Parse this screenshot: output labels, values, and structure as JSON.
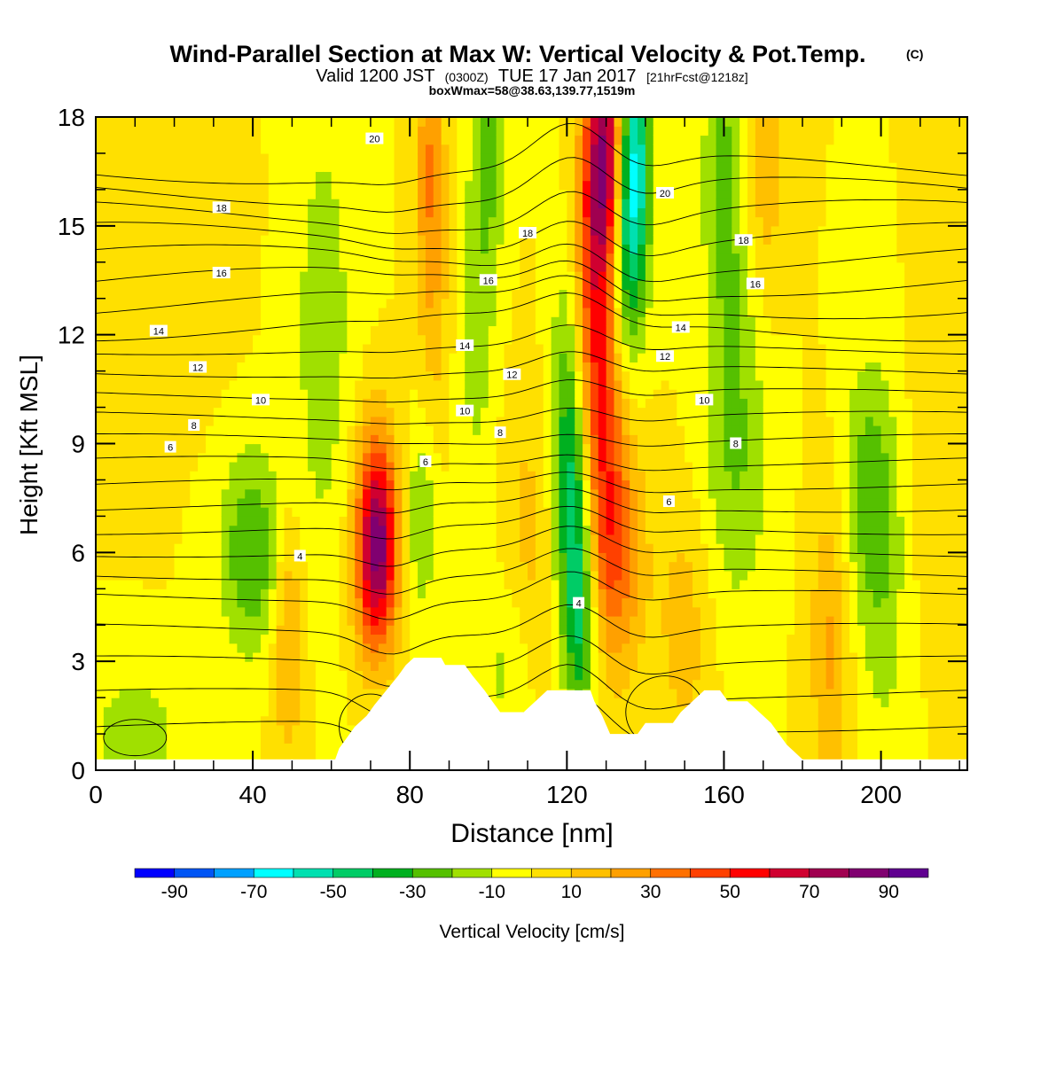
{
  "chart_data": {
    "type": "heatmap",
    "title": "Wind-Parallel Section at Max W: Vertical Velocity & Pot.Temp.",
    "title_mark": "(C)",
    "subtitle": {
      "part1": "Valid 1200 JST",
      "part2": "(0300Z)",
      "part3": "TUE 17 Jan 2017",
      "part4": "[21hrFcst@1218z]"
    },
    "info": "boxWmax=58@38.63,139.77,1519m",
    "xlabel": "Distance [nm]",
    "ylabel": "Height [Kft MSL]",
    "xlim": [
      0,
      222
    ],
    "ylim": [
      0,
      18
    ],
    "xticks": [
      "0",
      "40",
      "80",
      "120",
      "160",
      "200"
    ],
    "xtick_values": [
      0,
      40,
      80,
      120,
      160,
      200
    ],
    "yticks": [
      "0",
      "3",
      "6",
      "9",
      "12",
      "15",
      "18"
    ],
    "ytick_values": [
      0,
      3,
      6,
      9,
      12,
      15,
      18
    ],
    "colorbar": {
      "label": "Vertical Velocity [cm/s]",
      "range": [
        -100,
        100
      ],
      "step": 10,
      "tick_labels": [
        "-90",
        "-70",
        "-50",
        "-30",
        "-10",
        "10",
        "30",
        "50",
        "70",
        "90"
      ],
      "tick_values": [
        -90,
        -70,
        -50,
        -30,
        -10,
        10,
        30,
        50,
        70,
        90
      ],
      "colors": [
        "#0000ff",
        "#0055f5",
        "#00a0ff",
        "#00ffff",
        "#00e0b0",
        "#00cc66",
        "#00b020",
        "#55c000",
        "#a0e000",
        "#ffff00",
        "#ffe000",
        "#ffc000",
        "#ffa000",
        "#ff7000",
        "#ff4000",
        "#ff0000",
        "#d00030",
        "#a00050",
        "#800070",
        "#600090"
      ]
    },
    "series": [
      {
        "name": "Vertical Velocity",
        "units": "cm/s",
        "features": [
          {
            "x": 130,
            "y": 17.0,
            "value": 65,
            "sx": 3.5,
            "sy": 2.0
          },
          {
            "x": 128,
            "y": 14.5,
            "value": 35,
            "sx": 4.0,
            "sy": 3.0
          },
          {
            "x": 126,
            "y": 11.0,
            "value": 30,
            "sx": 4.5,
            "sy": 3.5
          },
          {
            "x": 130,
            "y": 8.0,
            "value": 30,
            "sx": 5.0,
            "sy": 3.0
          },
          {
            "x": 133,
            "y": 5.5,
            "value": 22,
            "sx": 5.0,
            "sy": 2.2
          },
          {
            "x": 137,
            "y": 17.0,
            "value": -55,
            "sx": 3.0,
            "sy": 2.2
          },
          {
            "x": 135,
            "y": 14.0,
            "value": -40,
            "sx": 3.5,
            "sy": 2.5
          },
          {
            "x": 121,
            "y": 9.5,
            "value": -42,
            "sx": 3.5,
            "sy": 3.5
          },
          {
            "x": 123,
            "y": 6.5,
            "value": -35,
            "sx": 3.2,
            "sy": 2.5
          },
          {
            "x": 124,
            "y": 3.5,
            "value": -25,
            "sx": 3.0,
            "sy": 1.5
          },
          {
            "x": 72,
            "y": 6.2,
            "value": 55,
            "sx": 3.5,
            "sy": 1.6
          },
          {
            "x": 71,
            "y": 7.8,
            "value": 30,
            "sx": 4.0,
            "sy": 1.8
          },
          {
            "x": 71,
            "y": 4.5,
            "value": 25,
            "sx": 4.0,
            "sy": 1.5
          },
          {
            "x": 49,
            "y": 4.0,
            "value": 25,
            "sx": 3.0,
            "sy": 2.5
          },
          {
            "x": 40,
            "y": 6.0,
            "value": -30,
            "sx": 6.0,
            "sy": 2.0
          },
          {
            "x": 85,
            "y": 17.0,
            "value": 25,
            "sx": 2.5,
            "sy": 2.5
          },
          {
            "x": 86,
            "y": 13.0,
            "value": 15,
            "sx": 3.0,
            "sy": 3.0
          },
          {
            "x": 100,
            "y": 17.5,
            "value": -25,
            "sx": 3.0,
            "sy": 2.5
          },
          {
            "x": 97,
            "y": 12.0,
            "value": -15,
            "sx": 3.5,
            "sy": 3.0
          },
          {
            "x": 83,
            "y": 7.0,
            "value": -20,
            "sx": 3.0,
            "sy": 2.0
          },
          {
            "x": 110,
            "y": 6.0,
            "value": 15,
            "sx": 5.0,
            "sy": 3.0
          },
          {
            "x": 163,
            "y": 8.5,
            "value": -20,
            "sx": 6.0,
            "sy": 3.0
          },
          {
            "x": 160,
            "y": 17.0,
            "value": -20,
            "sx": 4.0,
            "sy": 2.5
          },
          {
            "x": 162,
            "y": 13.5,
            "value": -12,
            "sx": 4.5,
            "sy": 2.5
          },
          {
            "x": 170,
            "y": 16.5,
            "value": 18,
            "sx": 4.0,
            "sy": 2.5
          },
          {
            "x": 197,
            "y": 7.8,
            "value": -25,
            "sx": 5.0,
            "sy": 2.5
          },
          {
            "x": 187,
            "y": 3.5,
            "value": 22,
            "sx": 3.5,
            "sy": 3.0
          },
          {
            "x": 201,
            "y": 4.0,
            "value": -12,
            "sx": 4.0,
            "sy": 3.0
          },
          {
            "x": 150,
            "y": 4.0,
            "value": 15,
            "sx": 5.0,
            "sy": 2.5
          },
          {
            "x": 105,
            "y": 3.0,
            "value": -15,
            "sx": 5.0,
            "sy": 2.0
          },
          {
            "x": 10,
            "y": 1.0,
            "value": -18,
            "sx": 8.0,
            "sy": 1.2
          },
          {
            "x": 20,
            "y": 14.5,
            "value": 8,
            "sx": 10.0,
            "sy": 3.0
          },
          {
            "x": 58,
            "y": 12.0,
            "value": -15,
            "sx": 6.0,
            "sy": 5.0
          },
          {
            "x": 215,
            "y": 9.0,
            "value": 10,
            "sx": 5.0,
            "sy": 3.0
          }
        ]
      },
      {
        "name": "Pot.Temp.",
        "units": "C",
        "contour_labels": [
          {
            "text": "20",
            "x": 71,
            "y": 17.4
          },
          {
            "text": "18",
            "x": 32,
            "y": 15.5
          },
          {
            "text": "16",
            "x": 32,
            "y": 13.7
          },
          {
            "text": "14",
            "x": 16,
            "y": 12.1
          },
          {
            "text": "12",
            "x": 26,
            "y": 11.1
          },
          {
            "text": "10",
            "x": 42,
            "y": 10.2
          },
          {
            "text": "8",
            "x": 25,
            "y": 9.5
          },
          {
            "text": "6",
            "x": 19,
            "y": 8.9
          },
          {
            "text": "4",
            "x": 52,
            "y": 5.9
          },
          {
            "text": "18",
            "x": 110,
            "y": 14.8
          },
          {
            "text": "16",
            "x": 100,
            "y": 13.5
          },
          {
            "text": "14",
            "x": 94,
            "y": 11.7
          },
          {
            "text": "12",
            "x": 106,
            "y": 10.9
          },
          {
            "text": "10",
            "x": 94,
            "y": 9.9
          },
          {
            "text": "8",
            "x": 103,
            "y": 9.3
          },
          {
            "text": "6",
            "x": 84,
            "y": 8.5
          },
          {
            "text": "4",
            "x": 123,
            "y": 4.6
          },
          {
            "text": "20",
            "x": 145,
            "y": 15.9
          },
          {
            "text": "18",
            "x": 165,
            "y": 14.6
          },
          {
            "text": "16",
            "x": 168,
            "y": 13.4
          },
          {
            "text": "14",
            "x": 149,
            "y": 12.2
          },
          {
            "text": "12",
            "x": 145,
            "y": 11.4
          },
          {
            "text": "10",
            "x": 155,
            "y": 10.2
          },
          {
            "text": "8",
            "x": 163,
            "y": 9.0
          },
          {
            "text": "6",
            "x": 146,
            "y": 7.4
          }
        ]
      }
    ],
    "terrain": [
      [
        0,
        0.3
      ],
      [
        61,
        0.3
      ],
      [
        62,
        0.6
      ],
      [
        64,
        0.9
      ],
      [
        66,
        1.2
      ],
      [
        69,
        1.5
      ],
      [
        71,
        1.8
      ],
      [
        74,
        2.2
      ],
      [
        77,
        2.6
      ],
      [
        79,
        2.9
      ],
      [
        81,
        3.1
      ],
      [
        88,
        3.1
      ],
      [
        89,
        2.9
      ],
      [
        94,
        2.9
      ],
      [
        96,
        2.6
      ],
      [
        99,
        2.2
      ],
      [
        101,
        1.9
      ],
      [
        103,
        1.6
      ],
      [
        109,
        1.6
      ],
      [
        112,
        1.9
      ],
      [
        115,
        2.2
      ],
      [
        119,
        2.2
      ],
      [
        126,
        2.2
      ],
      [
        127,
        1.9
      ],
      [
        129,
        1.5
      ],
      [
        131,
        1.0
      ],
      [
        138,
        1.0
      ],
      [
        140,
        1.3
      ],
      [
        147,
        1.3
      ],
      [
        149,
        1.6
      ],
      [
        152,
        1.9
      ],
      [
        155,
        2.2
      ],
      [
        159,
        2.2
      ],
      [
        161,
        1.9
      ],
      [
        166,
        1.9
      ],
      [
        169,
        1.6
      ],
      [
        172,
        1.3
      ],
      [
        174,
        1.0
      ],
      [
        176,
        0.7
      ],
      [
        178,
        0.5
      ],
      [
        180,
        0.3
      ],
      [
        222,
        0.3
      ]
    ]
  }
}
